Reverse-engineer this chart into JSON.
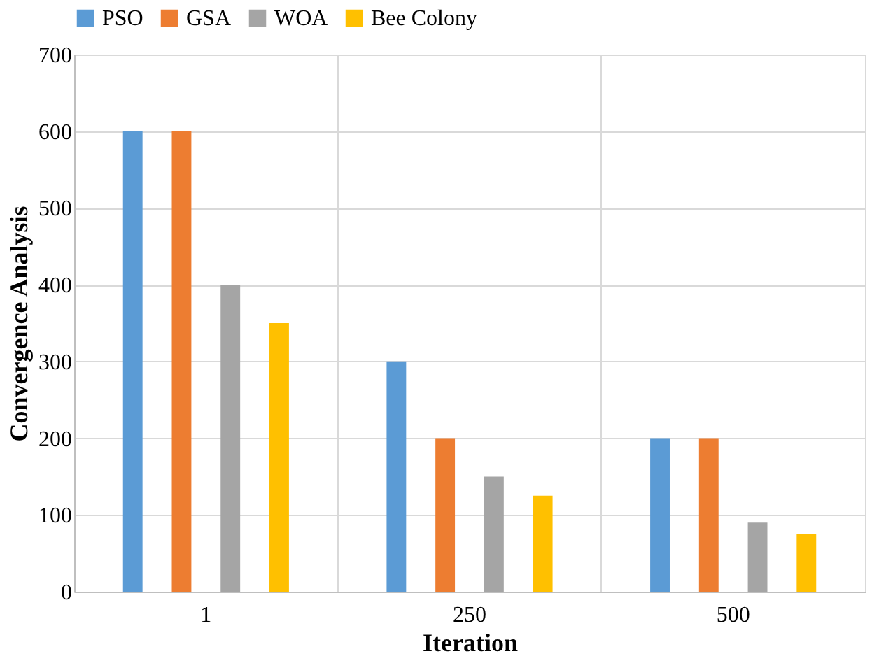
{
  "chart_data": {
    "type": "bar",
    "xlabel": "Iteration",
    "ylabel": "Convergence Analysis",
    "categories": [
      "1",
      "250",
      "500"
    ],
    "series": [
      {
        "name": "PSO",
        "color": "#5b9bd5",
        "values": [
          600,
          300,
          200
        ]
      },
      {
        "name": "GSA",
        "color": "#ed7d31",
        "values": [
          600,
          200,
          200
        ]
      },
      {
        "name": "WOA",
        "color": "#a5a5a5",
        "values": [
          400,
          150,
          90
        ]
      },
      {
        "name": "Bee Colony",
        "color": "#ffc000",
        "values": [
          350,
          125,
          75
        ]
      }
    ],
    "ylim": [
      0,
      700
    ],
    "yticks": [
      0,
      100,
      200,
      300,
      400,
      500,
      600,
      700
    ],
    "grid": true,
    "legend": "top"
  }
}
